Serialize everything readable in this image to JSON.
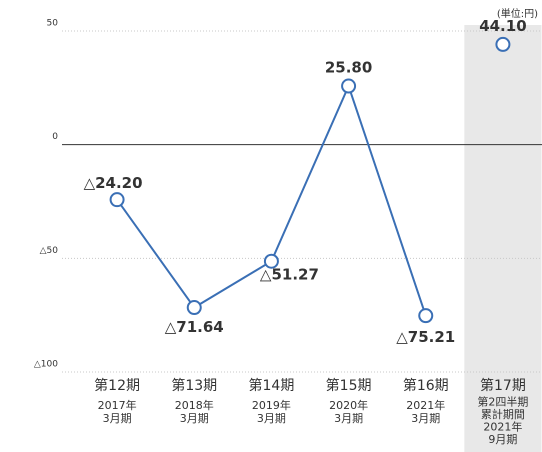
{
  "chart_data": {
    "type": "line",
    "unit_label": "(単位:円)",
    "categories": [
      [
        "第12期",
        "2017年",
        "3月期"
      ],
      [
        "第13期",
        "2018年",
        "3月期"
      ],
      [
        "第14期",
        "2019年",
        "3月期"
      ],
      [
        "第15期",
        "2020年",
        "3月期"
      ],
      [
        "第16期",
        "2021年",
        "3月期"
      ],
      [
        "第17期",
        "第2四半期",
        "累計期間",
        "2021年",
        "9月期"
      ]
    ],
    "series": [
      {
        "color": "#3a6fb5",
        "values": [
          -24.2,
          -71.64,
          -51.27,
          25.8,
          -75.21,
          44.1
        ],
        "value_labels": [
          "△24.20",
          "△71.64",
          "△51.27",
          "25.80",
          "△75.21",
          "44.10"
        ]
      }
    ],
    "ylim": [
      -100,
      50
    ],
    "yticks": [
      50,
      0,
      {
        "value": -50,
        "label": "△50"
      },
      {
        "value": -100,
        "label": "△100"
      }
    ],
    "grid": true,
    "shaded_categories": [
      5
    ]
  }
}
